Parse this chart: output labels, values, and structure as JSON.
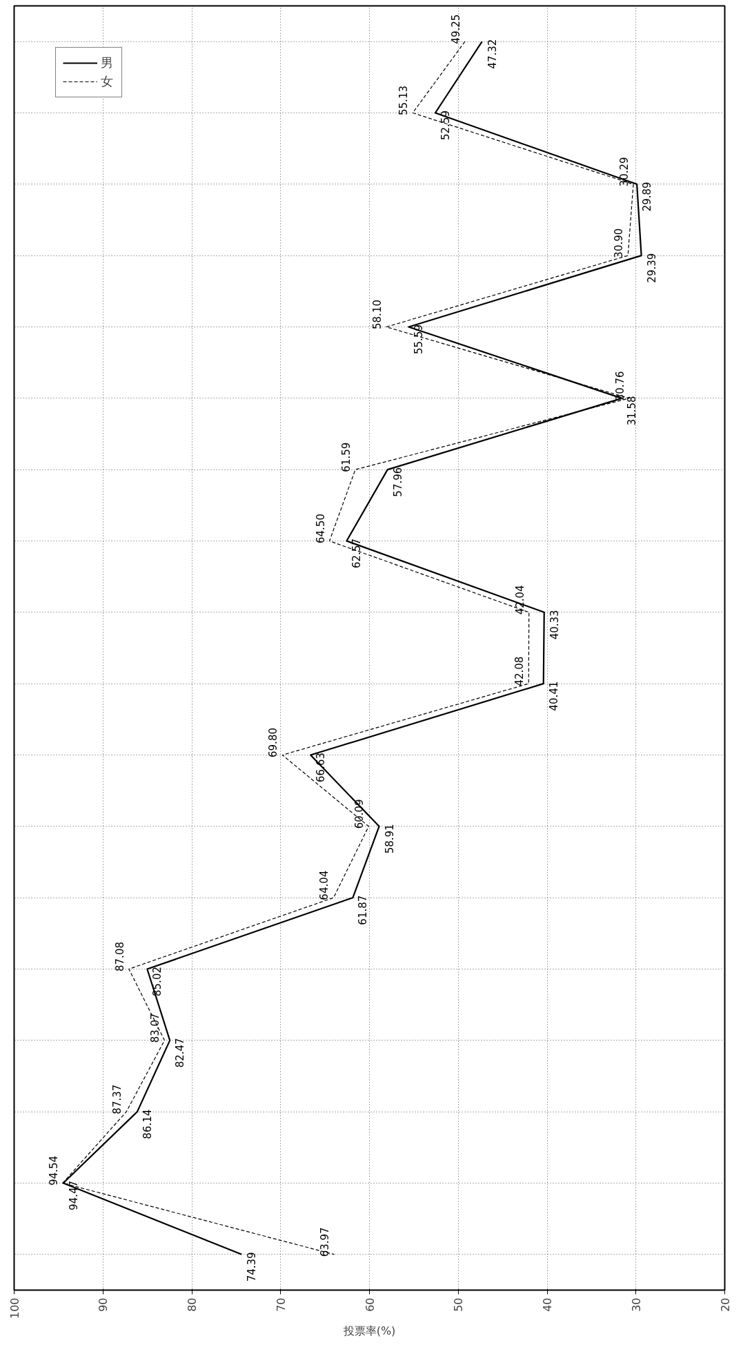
{
  "chart_data": {
    "type": "line",
    "orientation": "horizontal",
    "xlabel": "投票率(%)",
    "categories": [
      null,
      null,
      null,
      null,
      null,
      null,
      null,
      null,
      null,
      null,
      null,
      null,
      null,
      null,
      null,
      null,
      null,
      null
    ],
    "xlim": [
      100,
      20
    ],
    "xticks": [
      100,
      90,
      80,
      70,
      60,
      50,
      40,
      30,
      20
    ],
    "grid": true,
    "legend": "top left",
    "marker": "none",
    "series": [
      {
        "name": "男",
        "color": "#000000",
        "line_style": "solid",
        "values": [
          47.32,
          52.59,
          29.89,
          29.39,
          55.59,
          31.58,
          57.96,
          62.57,
          40.33,
          40.41,
          66.63,
          58.91,
          61.87,
          85.02,
          82.47,
          86.14,
          94.47,
          74.39
        ],
        "value_labels": [
          "47.32",
          "52.59",
          "29.89",
          "29.39",
          "55.59",
          "31.58",
          "57.96",
          "62.57",
          "40.33",
          "40.41",
          "66.63",
          "58.91",
          "61.87",
          "85.02",
          "82.47",
          "86.14",
          "94.47",
          "74.39"
        ]
      },
      {
        "name": "女",
        "color": "#000000",
        "line_style": "dashed",
        "values": [
          49.25,
          55.13,
          30.29,
          30.9,
          58.1,
          30.76,
          61.59,
          64.5,
          42.04,
          42.08,
          69.8,
          60.09,
          64.04,
          87.08,
          83.07,
          87.37,
          94.54,
          63.97
        ],
        "value_labels": [
          "49.25",
          "55.13",
          "30.29",
          "30.90",
          "58.10",
          "30.76",
          "61.59",
          "64.50",
          "42.04",
          "42.08",
          "69.80",
          "60.09",
          "64.04",
          "87.08",
          "83.07",
          "87.37",
          "94.54",
          "63.97"
        ]
      }
    ]
  }
}
